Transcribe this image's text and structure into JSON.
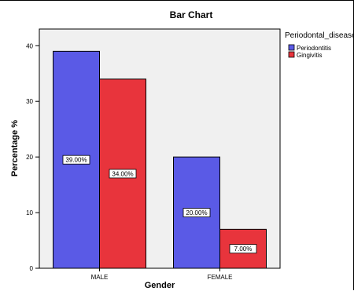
{
  "chart_data": {
    "type": "bar",
    "title": "Bar Chart",
    "xlabel": "Gender",
    "ylabel": "Percentage %",
    "categories": [
      "MALE",
      "FEMALE"
    ],
    "series": [
      {
        "name": "Periodontitis",
        "color": "#5a5ae6",
        "values": [
          39,
          20
        ],
        "labels": [
          "39.00%",
          "20.00%"
        ]
      },
      {
        "name": "Gingivitis",
        "color": "#e8343c",
        "values": [
          34,
          7
        ],
        "labels": [
          "34.00%",
          "7.00%"
        ]
      }
    ],
    "ylim": [
      0,
      43
    ],
    "yticks": [
      0,
      10,
      20,
      30,
      40
    ],
    "legend": {
      "title": "Periodontal_disease",
      "placement": "right"
    },
    "plot_background": "#f0f0f0",
    "grid": false
  }
}
